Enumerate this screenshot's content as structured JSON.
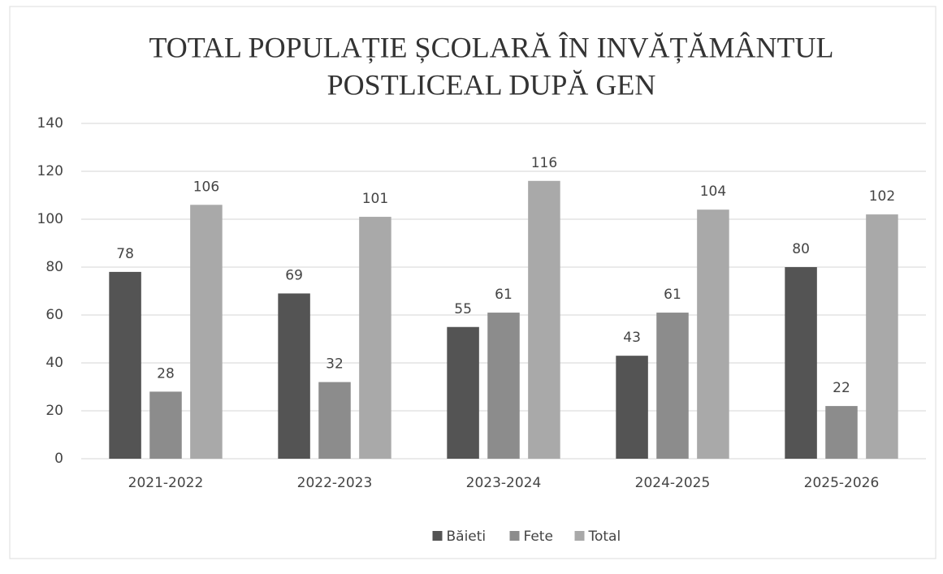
{
  "chart_data": {
    "type": "bar",
    "title": [
      "TOTAL POPULAȚIE ȘCOLARĂ ÎN INVĂȚĂMÂNTUL",
      "POSTLICEAL DUPĂ GEN"
    ],
    "categories": [
      "2021-2022",
      "2022-2023",
      "2023-2024",
      "2024-2025",
      "2025-2026"
    ],
    "series": [
      {
        "name": "Băieti",
        "color": "#545454",
        "values": [
          78,
          69,
          55,
          43,
          80
        ]
      },
      {
        "name": "Fete",
        "color": "#8c8c8c",
        "values": [
          28,
          32,
          61,
          61,
          22
        ]
      },
      {
        "name": "Total",
        "color": "#a9a9a9",
        "values": [
          106,
          101,
          116,
          104,
          102
        ]
      }
    ],
    "ylim": [
      0,
      140
    ],
    "yticks": [
      0,
      20,
      40,
      60,
      80,
      100,
      120,
      140
    ],
    "grid": true,
    "legend": "bottom"
  }
}
